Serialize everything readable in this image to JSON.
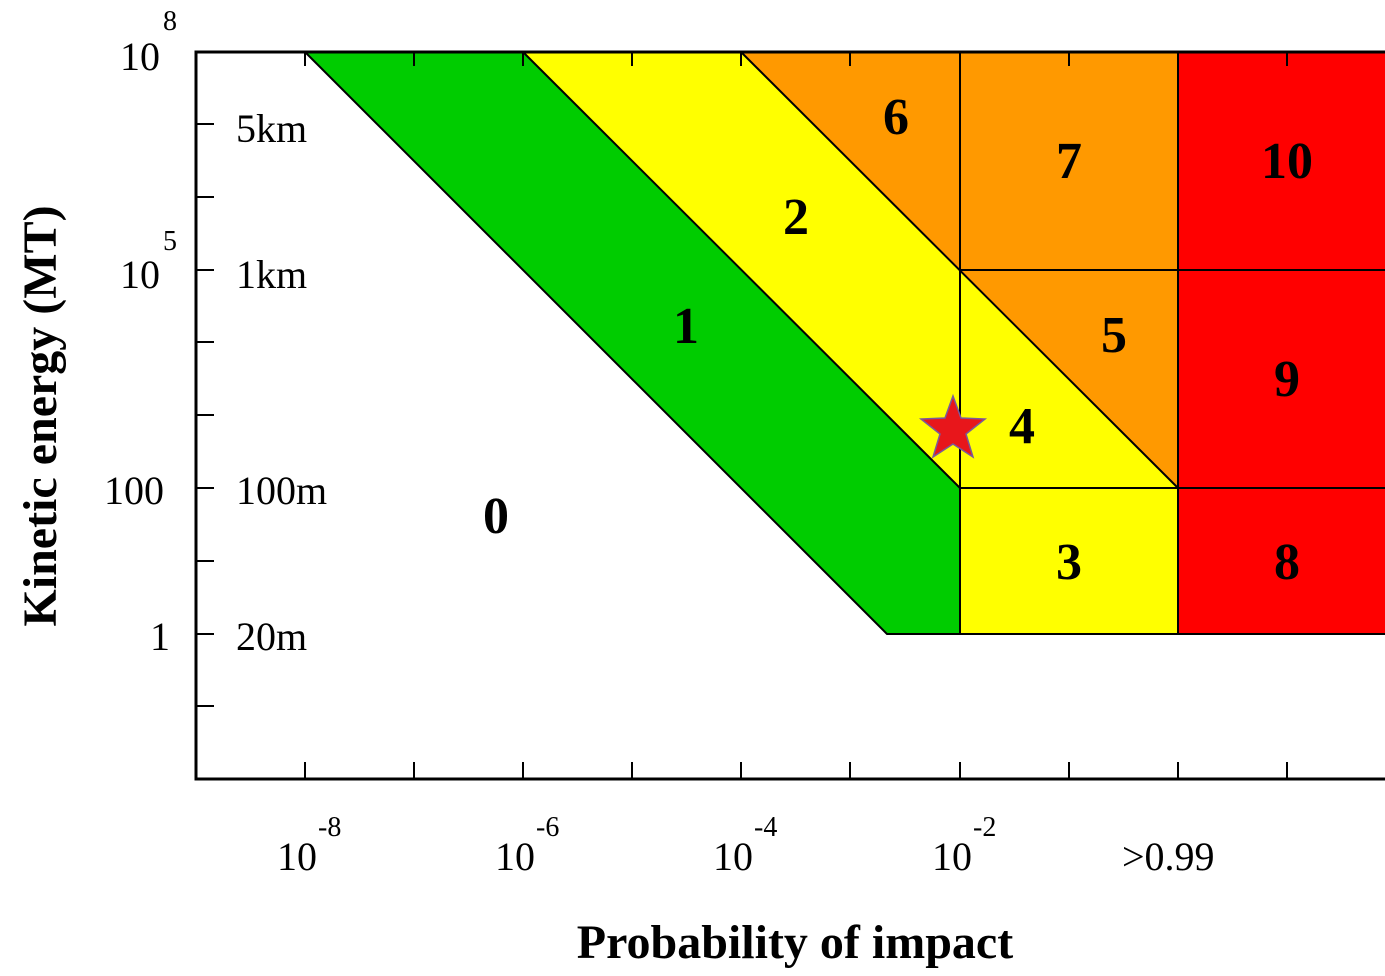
{
  "chart_data": {
    "type": "other",
    "description_type": "torino-scale-zone-diagram",
    "xlabel": "Probability of impact",
    "ylabel": "Kinetic energy (MT)",
    "x_ticks": [
      {
        "base": "10",
        "exp": "-8"
      },
      {
        "base": "10",
        "exp": "-6"
      },
      {
        "base": "10",
        "exp": "-4"
      },
      {
        "base": "10",
        "exp": "-2"
      },
      {
        "base": ">0.99",
        "exp": ""
      }
    ],
    "y_ticks": [
      {
        "base": "10",
        "exp": "8"
      },
      {
        "base": "10",
        "exp": "5"
      },
      {
        "base": "100",
        "exp": ""
      },
      {
        "base": "1",
        "exp": ""
      }
    ],
    "size_labels": [
      "5km",
      "1km",
      "100m",
      "20m"
    ],
    "zones": [
      {
        "label": "0",
        "color": "#ffffff"
      },
      {
        "label": "1",
        "color": "#00cc00"
      },
      {
        "label": "2",
        "color": "#ffff00"
      },
      {
        "label": "3",
        "color": "#ffff00"
      },
      {
        "label": "4",
        "color": "#ffff00"
      },
      {
        "label": "5",
        "color": "#ff9900"
      },
      {
        "label": "6",
        "color": "#ff9900"
      },
      {
        "label": "7",
        "color": "#ff9900"
      },
      {
        "label": "8",
        "color": "#ff0000"
      },
      {
        "label": "9",
        "color": "#ff0000"
      },
      {
        "label": "10",
        "color": "#ff0000"
      }
    ],
    "marker": {
      "shape": "star",
      "color": "#e8161b",
      "x": "10^-2",
      "y": "~1000 MT"
    }
  }
}
